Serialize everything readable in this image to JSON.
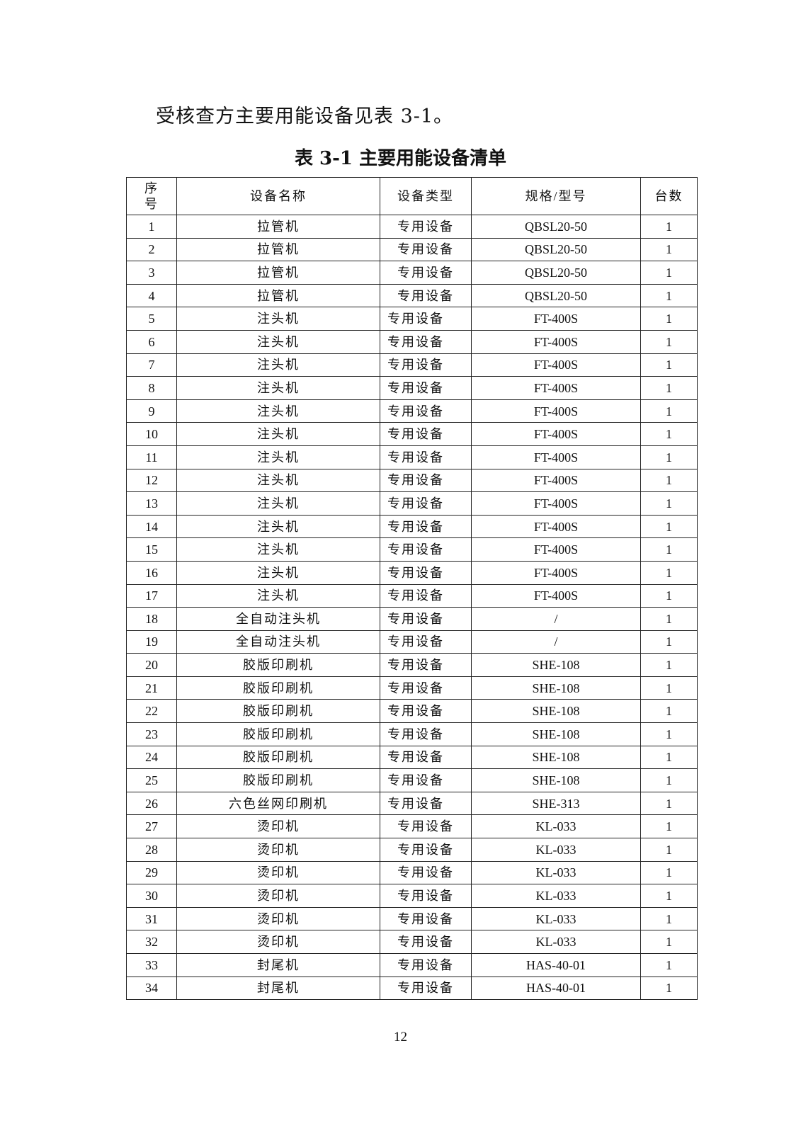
{
  "intro": "受核查方主要用能设备见表 3-1。",
  "caption": "表 3-1  主要用能设备清单",
  "table": {
    "headers": {
      "seq": "序号",
      "name": "设备名称",
      "type": "设备类型",
      "spec": "规格/型号",
      "qty": "台数"
    },
    "rows": [
      [
        "1",
        "拉管机",
        "专用设备",
        "QBSL20-50",
        "1"
      ],
      [
        "2",
        "拉管机",
        "专用设备",
        "QBSL20-50",
        "1"
      ],
      [
        "3",
        "拉管机",
        "专用设备",
        "QBSL20-50",
        "1"
      ],
      [
        "4",
        "拉管机",
        "专用设备",
        "QBSL20-50",
        "1"
      ],
      [
        "5",
        "注头机",
        "专用设备",
        "FT-400S",
        "1"
      ],
      [
        "6",
        "注头机",
        "专用设备",
        "FT-400S",
        "1"
      ],
      [
        "7",
        "注头机",
        "专用设备",
        "FT-400S",
        "1"
      ],
      [
        "8",
        "注头机",
        "专用设备",
        "FT-400S",
        "1"
      ],
      [
        "9",
        "注头机",
        "专用设备",
        "FT-400S",
        "1"
      ],
      [
        "10",
        "注头机",
        "专用设备",
        "FT-400S",
        "1"
      ],
      [
        "11",
        "注头机",
        "专用设备",
        "FT-400S",
        "1"
      ],
      [
        "12",
        "注头机",
        "专用设备",
        "FT-400S",
        "1"
      ],
      [
        "13",
        "注头机",
        "专用设备",
        "FT-400S",
        "1"
      ],
      [
        "14",
        "注头机",
        "专用设备",
        "FT-400S",
        "1"
      ],
      [
        "15",
        "注头机",
        "专用设备",
        "FT-400S",
        "1"
      ],
      [
        "16",
        "注头机",
        "专用设备",
        "FT-400S",
        "1"
      ],
      [
        "17",
        "注头机",
        "专用设备",
        "FT-400S",
        "1"
      ],
      [
        "18",
        "全自动注头机",
        "专用设备",
        "/",
        "1"
      ],
      [
        "19",
        "全自动注头机",
        "专用设备",
        "/",
        "1"
      ],
      [
        "20",
        "胶版印刷机",
        "专用设备",
        "SHE-108",
        "1"
      ],
      [
        "21",
        "胶版印刷机",
        "专用设备",
        "SHE-108",
        "1"
      ],
      [
        "22",
        "胶版印刷机",
        "专用设备",
        "SHE-108",
        "1"
      ],
      [
        "23",
        "胶版印刷机",
        "专用设备",
        "SHE-108",
        "1"
      ],
      [
        "24",
        "胶版印刷机",
        "专用设备",
        "SHE-108",
        "1"
      ],
      [
        "25",
        "胶版印刷机",
        "专用设备",
        "SHE-108",
        "1"
      ],
      [
        "26",
        "六色丝网印刷机",
        "专用设备",
        "SHE-313",
        "1"
      ],
      [
        "27",
        "烫印机",
        "专用设备",
        "KL-033",
        "1"
      ],
      [
        "28",
        "烫印机",
        "专用设备",
        "KL-033",
        "1"
      ],
      [
        "29",
        "烫印机",
        "专用设备",
        "KL-033",
        "1"
      ],
      [
        "30",
        "烫印机",
        "专用设备",
        "KL-033",
        "1"
      ],
      [
        "31",
        "烫印机",
        "专用设备",
        "KL-033",
        "1"
      ],
      [
        "32",
        "烫印机",
        "专用设备",
        "KL-033",
        "1"
      ],
      [
        "33",
        "封尾机",
        "专用设备",
        "HAS-40-01",
        "1"
      ],
      [
        "34",
        "封尾机",
        "专用设备",
        "HAS-40-01",
        "1"
      ]
    ]
  },
  "page_number": "12"
}
